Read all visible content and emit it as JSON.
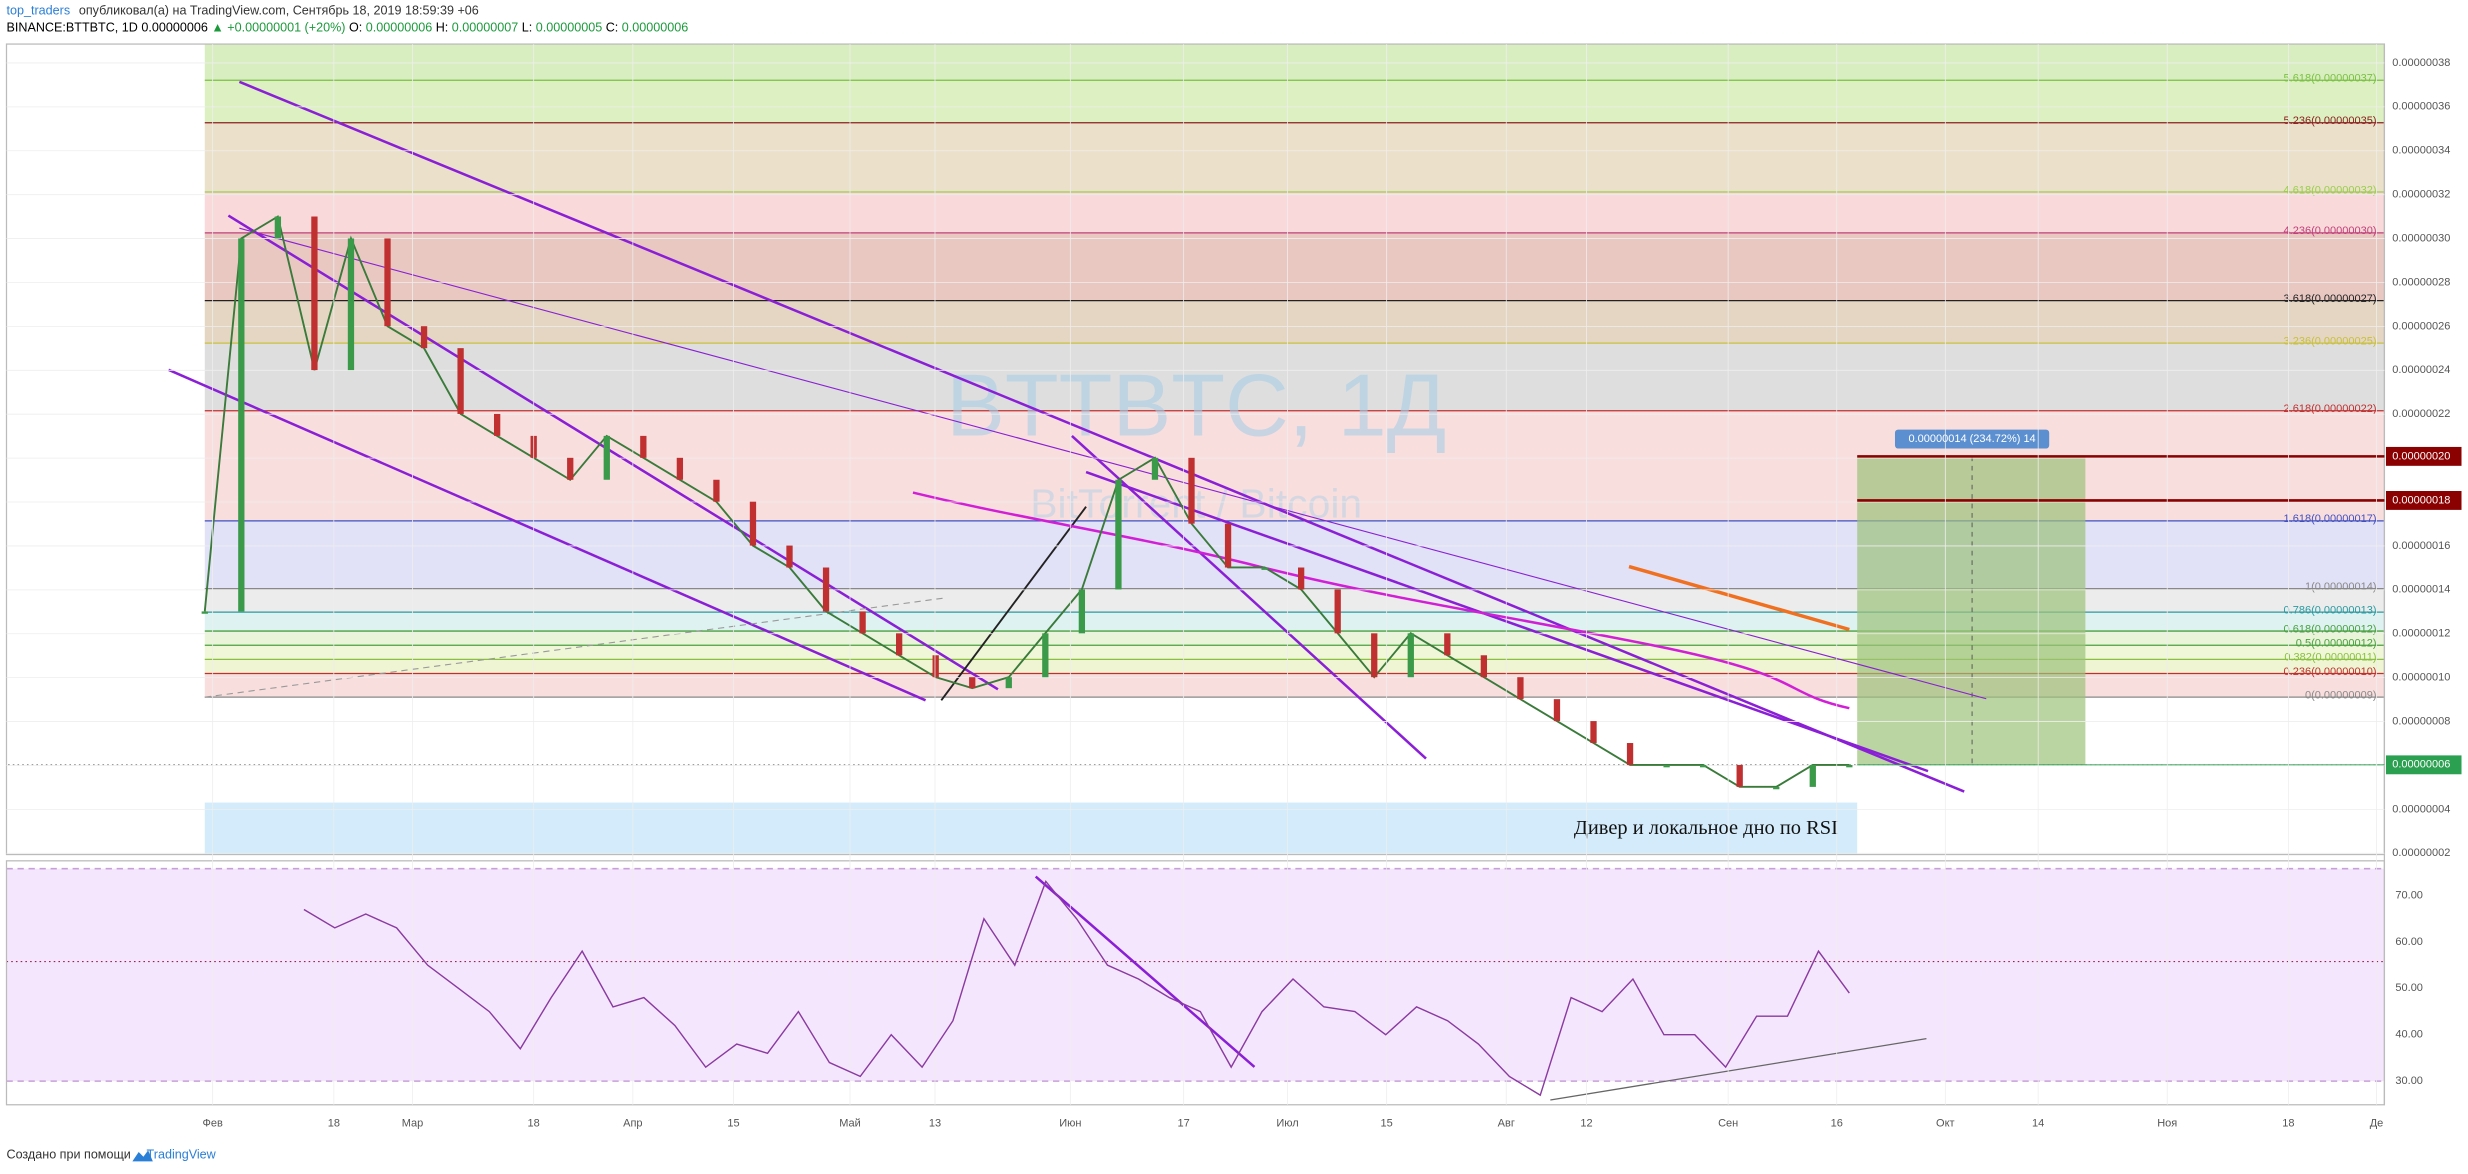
{
  "header": {
    "author": "top_traders",
    "published": " опубликовал(а) на TradingView.com, Сентябрь 18, 2019 18:59:39 +06"
  },
  "symbol": {
    "ticker": "BINANCE:BTTBTC, 1D",
    "last": "0.00000006",
    "change": "▲ +0.00000001 (+20%)",
    "ohlc": [
      "O:",
      "0.00000006",
      "H:",
      "0.00000007",
      "L:",
      "0.00000005",
      "C:",
      "0.00000006"
    ]
  },
  "watermark": {
    "title": "BTTBTC, 1Д",
    "subtitle": "BitTorrent / Bitcoin"
  },
  "price_axis": [
    "0.00000038",
    "0.00000036",
    "0.00000034",
    "0.00000032",
    "0.00000030",
    "0.00000028",
    "0.00000026",
    "0.00000024",
    "0.00000022",
    "0.00000020",
    "0.00000018",
    "0.00000016",
    "0.00000014",
    "0.00000012",
    "0.00000010",
    "0.00000008",
    "0.00000006",
    "0.00000004",
    "0.00000002"
  ],
  "price_tags": [
    "0.00000020",
    "0.00000018",
    "0.00000006"
  ],
  "fib_levels": [
    "5.618(0.00000037)",
    "5.236(0.00000035)",
    "4.618(0.00000032)",
    "4.236(0.00000030)",
    "3.618(0.00000027)",
    "3.236(0.00000025)",
    "2.618(0.00000022)",
    "1.618(0.00000017)",
    "1(0.00000014)",
    "0.786(0.00000013)",
    "0.618(0.00000012)",
    "0.5(0.00000012)",
    "0.382(0.00000011)",
    "0.236(0.00000010)",
    "0(0.00000009)"
  ],
  "position_label": "0.00000014 (234.72%) 14",
  "annotation": "Дивер и локальное дно по RSI",
  "time_axis": [
    "Фев",
    "18",
    "Мар",
    "18",
    "Апр",
    "15",
    "Май",
    "13",
    "Июн",
    "17",
    "Июл",
    "15",
    "Авг",
    "12",
    "Сен",
    "16",
    "Окт",
    "14",
    "Ноя",
    "18",
    "Де"
  ],
  "rsi_axis": [
    "70.00",
    "60.00",
    "50.00",
    "40.00",
    "30.00"
  ],
  "price_closes": [
    1.3e-07,
    3e-07,
    3.1e-07,
    2.4e-07,
    3e-07,
    2.6e-07,
    2.5e-07,
    2.2e-07,
    2.1e-07,
    2e-07,
    1.9e-07,
    2.1e-07,
    2e-07,
    1.9e-07,
    1.8e-07,
    1.6e-07,
    1.5e-07,
    1.3e-07,
    1.2e-07,
    1.1e-07,
    1e-07,
    9.5e-08,
    1e-07,
    1.2e-07,
    1.4e-07,
    1.9e-07,
    2e-07,
    1.7e-07,
    1.5e-07,
    1.5e-07,
    1.4e-07,
    1.2e-07,
    1e-07,
    1.2e-07,
    1.1e-07,
    1e-07,
    9e-08,
    8e-08,
    7e-08,
    6e-08,
    6e-08,
    6e-08,
    5e-08,
    5e-08,
    6e-08,
    6e-08
  ],
  "rsi_values": [
    67,
    63,
    66,
    63,
    55,
    50,
    45,
    37,
    48,
    58,
    46,
    48,
    42,
    33,
    38,
    36,
    45,
    34,
    31,
    40,
    33,
    43,
    65,
    55,
    73,
    65,
    55,
    52,
    48,
    45,
    33,
    45,
    52,
    46,
    45,
    40,
    46,
    43,
    38,
    31,
    27,
    48,
    45,
    52,
    40,
    40,
    33,
    44,
    44,
    58,
    49
  ],
  "footer": {
    "text": "Создано при помощи",
    "brand": "TradingView"
  }
}
